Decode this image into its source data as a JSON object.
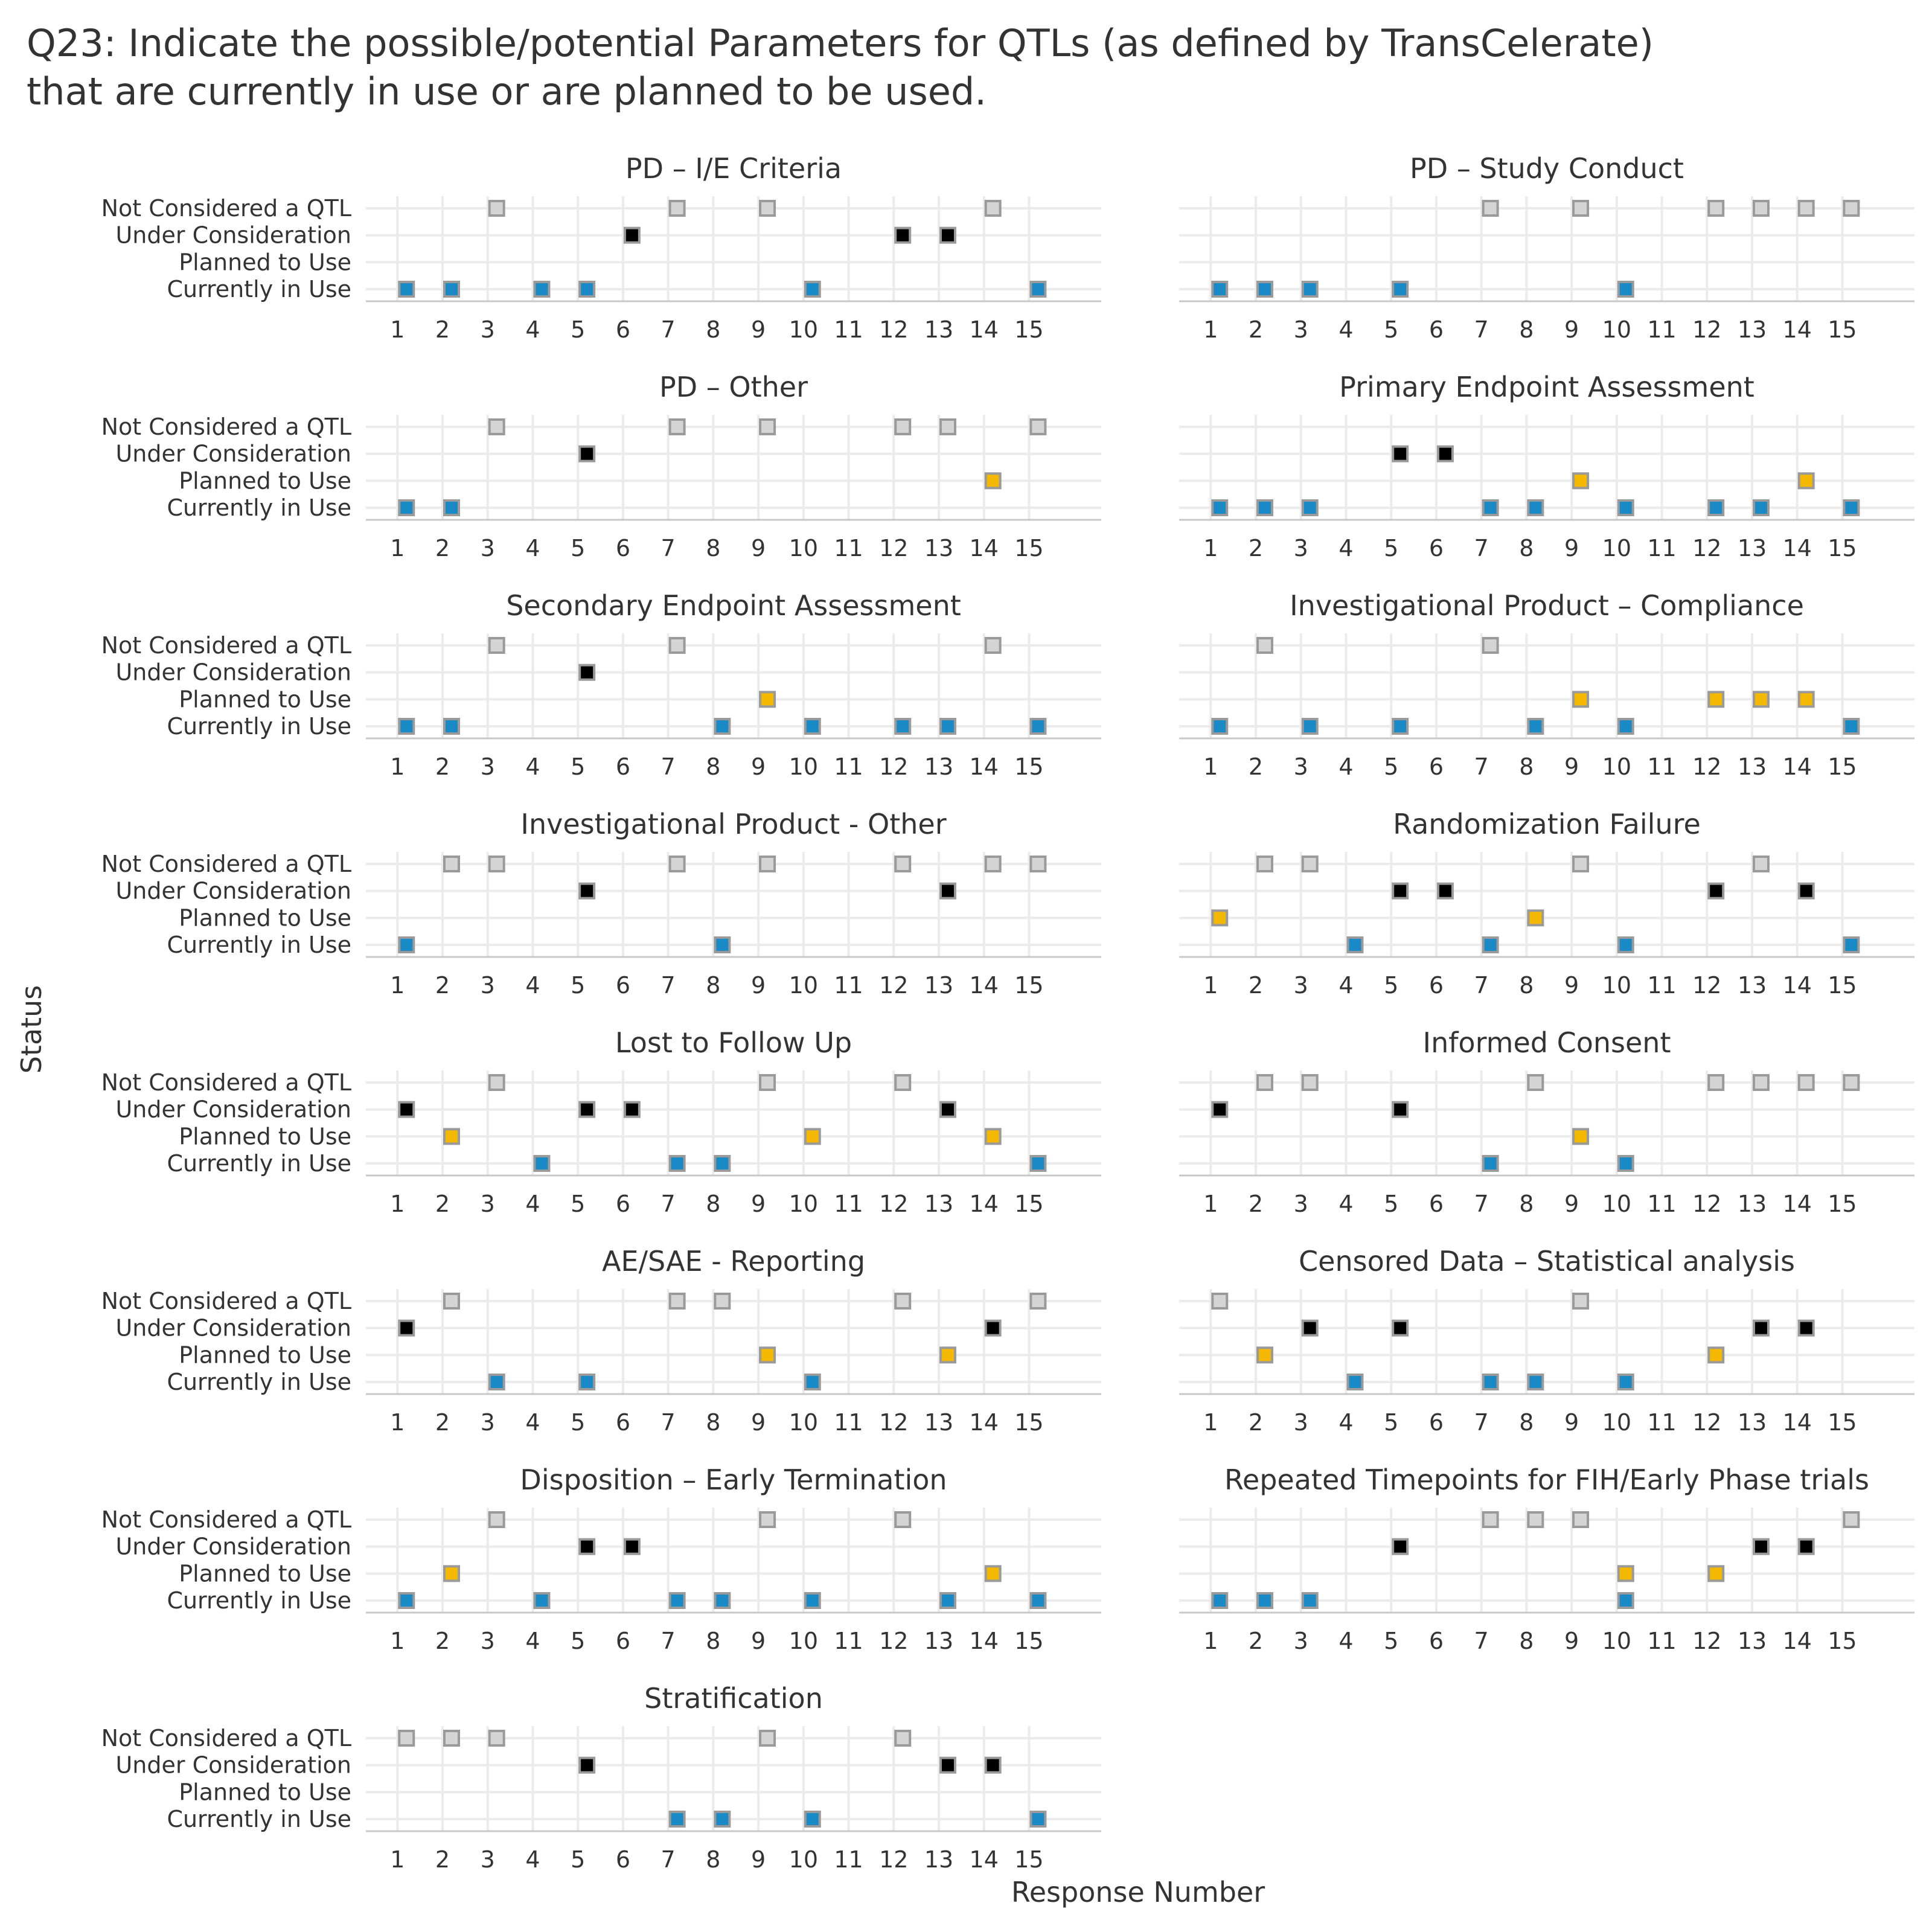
{
  "chart_data": {
    "type": "scatter",
    "title_lines": [
      "Q23: Indicate the possible/potential Parameters for QTLs (as defined by TransCelerate)",
      "that are currently in use or are planned to be used."
    ],
    "xlabel": "Response Number",
    "ylabel": "Status",
    "x_ticks": [
      "1",
      "2",
      "3",
      "4",
      "5",
      "6",
      "7",
      "8",
      "9",
      "10",
      "11",
      "12",
      "13",
      "14",
      "15"
    ],
    "xlim": [
      0.3,
      16.6
    ],
    "y_categories": [
      "Not Considered a QTL",
      "Under Consideration",
      "Planned to Use",
      "Currently in Use"
    ],
    "colors": {
      "Not Considered a QTL": "#d4d4d4",
      "Under Consideration": "#000000",
      "Planned to Use": "#f5b800",
      "Currently in Use": "#1a8ac6"
    },
    "grid": true,
    "facets": [
      {
        "title": "PD – I/E Criteria",
        "points": {
          "Not Considered a QTL": [
            3,
            7,
            9,
            14
          ],
          "Under Consideration": [
            6,
            12,
            13
          ],
          "Planned to Use": [],
          "Currently in Use": [
            1,
            2,
            4,
            5,
            10,
            15
          ]
        }
      },
      {
        "title": "PD – Study Conduct",
        "points": {
          "Not Considered a QTL": [
            7,
            9,
            12,
            13,
            14,
            15
          ],
          "Under Consideration": [],
          "Planned to Use": [],
          "Currently in Use": [
            1,
            2,
            3,
            5,
            10
          ]
        }
      },
      {
        "title": "PD – Other",
        "points": {
          "Not Considered a QTL": [
            3,
            7,
            9,
            12,
            13,
            15
          ],
          "Under Consideration": [
            5
          ],
          "Planned to Use": [
            14
          ],
          "Currently in Use": [
            1,
            2
          ]
        }
      },
      {
        "title": "Primary Endpoint Assessment",
        "points": {
          "Not Considered a QTL": [],
          "Under Consideration": [
            5,
            6
          ],
          "Planned to Use": [
            9,
            14
          ],
          "Currently in Use": [
            1,
            2,
            3,
            7,
            8,
            10,
            12,
            13,
            15
          ]
        }
      },
      {
        "title": "Secondary Endpoint Assessment",
        "points": {
          "Not Considered a QTL": [
            3,
            7,
            14
          ],
          "Under Consideration": [
            5
          ],
          "Planned to Use": [
            9
          ],
          "Currently in Use": [
            1,
            2,
            8,
            10,
            12,
            13,
            15
          ]
        }
      },
      {
        "title": "Investigational Product – Compliance",
        "points": {
          "Not Considered a QTL": [
            2,
            7
          ],
          "Under Consideration": [],
          "Planned to Use": [
            9,
            12,
            13,
            14
          ],
          "Currently in Use": [
            1,
            3,
            5,
            8,
            10,
            15
          ]
        }
      },
      {
        "title": "Investigational Product - Other",
        "points": {
          "Not Considered a QTL": [
            2,
            3,
            7,
            9,
            12,
            14,
            15
          ],
          "Under Consideration": [
            5,
            13
          ],
          "Planned to Use": [],
          "Currently in Use": [
            1,
            8
          ]
        }
      },
      {
        "title": "Randomization Failure",
        "points": {
          "Not Considered a QTL": [
            2,
            3,
            9,
            13
          ],
          "Under Consideration": [
            5,
            6,
            12,
            14
          ],
          "Planned to Use": [
            1,
            8
          ],
          "Currently in Use": [
            4,
            7,
            10,
            15
          ]
        }
      },
      {
        "title": "Lost to Follow Up",
        "points": {
          "Not Considered a QTL": [
            3,
            9,
            12
          ],
          "Under Consideration": [
            1,
            5,
            6,
            13
          ],
          "Planned to Use": [
            2,
            10,
            14
          ],
          "Currently in Use": [
            4,
            7,
            8,
            15
          ]
        }
      },
      {
        "title": "Informed Consent",
        "points": {
          "Not Considered a QTL": [
            2,
            3,
            8,
            12,
            13,
            14,
            15
          ],
          "Under Consideration": [
            1,
            5
          ],
          "Planned to Use": [
            9
          ],
          "Currently in Use": [
            7,
            10
          ]
        }
      },
      {
        "title": "AE/SAE - Reporting",
        "points": {
          "Not Considered a QTL": [
            2,
            7,
            8,
            12,
            15
          ],
          "Under Consideration": [
            1,
            14
          ],
          "Planned to Use": [
            9,
            13
          ],
          "Currently in Use": [
            3,
            5,
            10
          ]
        }
      },
      {
        "title": "Censored Data – Statistical analysis",
        "points": {
          "Not Considered a QTL": [
            1,
            9
          ],
          "Under Consideration": [
            3,
            5,
            13,
            14
          ],
          "Planned to Use": [
            2,
            12
          ],
          "Currently in Use": [
            4,
            7,
            8,
            10
          ]
        }
      },
      {
        "title": "Disposition – Early Termination",
        "points": {
          "Not Considered a QTL": [
            3,
            9,
            12
          ],
          "Under Consideration": [
            5,
            6
          ],
          "Planned to Use": [
            2,
            14
          ],
          "Currently in Use": [
            1,
            4,
            7,
            8,
            10,
            13,
            15
          ]
        }
      },
      {
        "title": "Repeated Timepoints for FIH/Early Phase trials",
        "points": {
          "Not Considered a QTL": [
            7,
            8,
            9,
            15
          ],
          "Under Consideration": [
            5,
            13,
            14
          ],
          "Planned to Use": [
            10,
            12
          ],
          "Currently in Use": [
            1,
            2,
            3,
            10
          ]
        }
      },
      {
        "title": "Stratification",
        "points": {
          "Not Considered a QTL": [
            1,
            2,
            3,
            9,
            12
          ],
          "Under Consideration": [
            5,
            13,
            14
          ],
          "Planned to Use": [],
          "Currently in Use": [
            7,
            8,
            10,
            15
          ]
        }
      }
    ]
  }
}
